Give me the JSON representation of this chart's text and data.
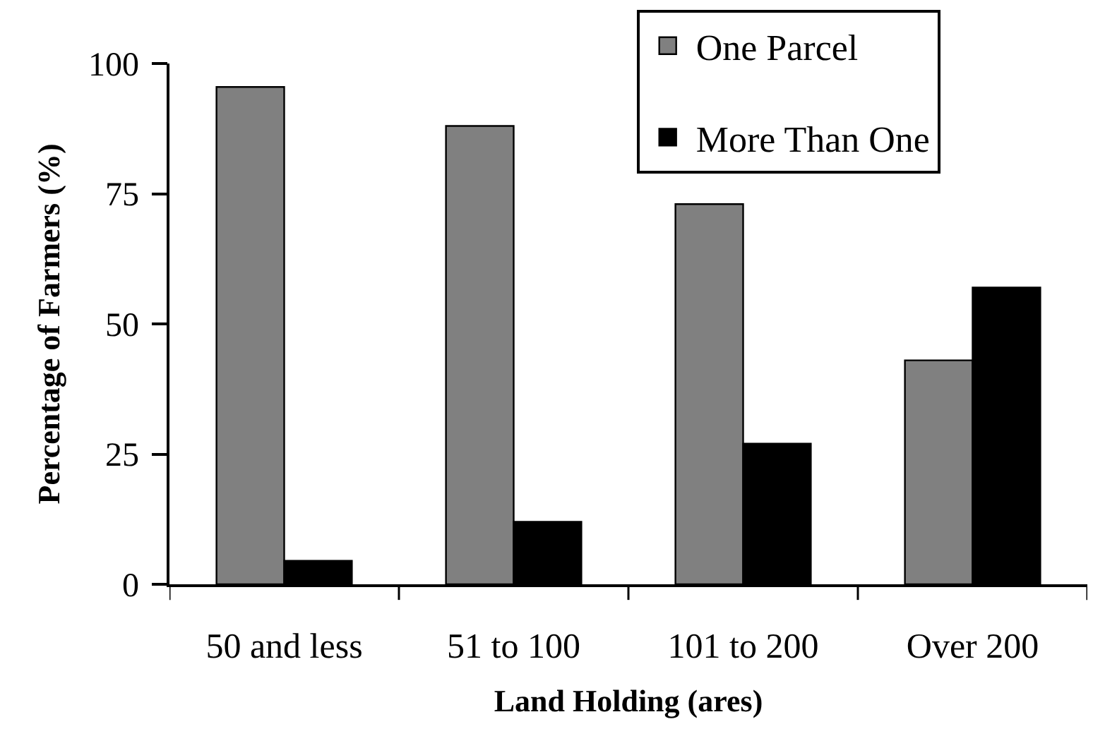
{
  "chart_data": {
    "type": "bar",
    "xlabel": "Land Holding (ares)",
    "ylabel": "Percentage of Farmers (%)",
    "categories": [
      "50 and less",
      "51 to 100",
      "101 to 200",
      "Over 200"
    ],
    "series": [
      {
        "name": "One Parcel",
        "color": "#808080",
        "values": [
          95.5,
          88,
          73,
          43
        ]
      },
      {
        "name": "More Than One",
        "color": "#000000",
        "values": [
          4.5,
          12,
          27,
          57
        ]
      }
    ],
    "ylim": [
      0,
      100
    ],
    "yticks": [
      0,
      25,
      50,
      75,
      100
    ],
    "grid": false,
    "legend": "top right"
  }
}
